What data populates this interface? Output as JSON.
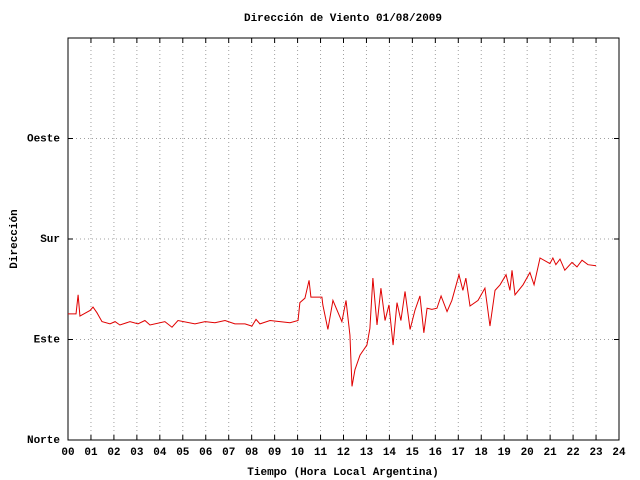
{
  "chart_data": {
    "type": "line",
    "title": "Dirección de Viento 01/08/2009",
    "xlabel": "Tiempo (Hora Local Argentina)",
    "ylabel": "Dirección",
    "x": [
      0,
      0.35,
      0.44,
      0.52,
      0.96,
      1.09,
      1.26,
      1.48,
      1.83,
      2.05,
      2.26,
      2.7,
      3.05,
      3.35,
      3.57,
      4.22,
      4.53,
      4.79,
      5.53,
      5.97,
      6.4,
      6.84,
      7.27,
      7.71,
      8.01,
      8.19,
      8.36,
      8.8,
      9.23,
      9.67,
      10.02,
      10.1,
      10.32,
      10.5,
      10.58,
      11.06,
      11.1,
      11.32,
      11.54,
      11.93,
      12.11,
      12.28,
      12.37,
      12.5,
      12.72,
      13.02,
      13.15,
      13.28,
      13.46,
      13.63,
      13.81,
      13.98,
      14.16,
      14.33,
      14.5,
      14.68,
      14.9,
      15.11,
      15.33,
      15.5,
      15.64,
      15.85,
      16.07,
      16.25,
      16.51,
      16.72,
      17.03,
      17.2,
      17.33,
      17.51,
      17.86,
      18.16,
      18.38,
      18.6,
      18.82,
      19.08,
      19.25,
      19.34,
      19.47,
      19.82,
      20.12,
      20.3,
      20.56,
      20.99,
      21.12,
      21.25,
      21.43,
      21.64,
      21.95,
      22.17,
      22.39,
      22.65,
      23.0
    ],
    "series": [
      {
        "color": "#e00000",
        "values": [
          113,
          113,
          130,
          111,
          116,
          119,
          114,
          106,
          104,
          106,
          103,
          106,
          104,
          107,
          103,
          106,
          101,
          107,
          104,
          106,
          105,
          107,
          104,
          104,
          102,
          108,
          104,
          107,
          106,
          105,
          107,
          123,
          127,
          143,
          128,
          128,
          121,
          99,
          125,
          106,
          125,
          94,
          48,
          63,
          76,
          85,
          100,
          145,
          103,
          136,
          107,
          121,
          85,
          123,
          107,
          133,
          99,
          116,
          129,
          96,
          118,
          117,
          118,
          129,
          115,
          125,
          148,
          134,
          145,
          120,
          125,
          136,
          102,
          134,
          139,
          148,
          134,
          152,
          130,
          139,
          150,
          139,
          163,
          158,
          163,
          157,
          162,
          152,
          159,
          155,
          161,
          157,
          156
        ]
      }
    ],
    "xlim": [
      0,
      24
    ],
    "xticks": [
      {
        "value": 0,
        "label": "00"
      },
      {
        "value": 1,
        "label": "01"
      },
      {
        "value": 2,
        "label": "02"
      },
      {
        "value": 3,
        "label": "03"
      },
      {
        "value": 4,
        "label": "04"
      },
      {
        "value": 5,
        "label": "05"
      },
      {
        "value": 6,
        "label": "06"
      },
      {
        "value": 7,
        "label": "07"
      },
      {
        "value": 8,
        "label": "08"
      },
      {
        "value": 9,
        "label": "09"
      },
      10,
      11,
      12,
      13,
      14,
      15,
      16,
      17,
      18,
      19,
      20,
      21,
      22,
      23,
      24
    ],
    "ylim": [
      0,
      360
    ],
    "yticks": [
      {
        "value": 0,
        "label": "Norte"
      },
      {
        "value": 90,
        "label": "Este"
      },
      {
        "value": 180,
        "label": "Sur"
      },
      {
        "value": 270,
        "label": "Oeste"
      }
    ],
    "grid": true
  }
}
